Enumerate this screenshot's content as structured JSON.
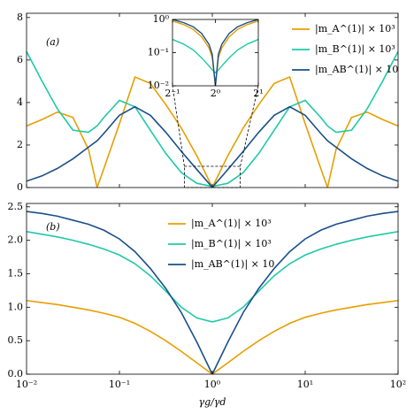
{
  "chart_data": [
    {
      "type": "line",
      "annotation": "(a)",
      "x": [
        0.01,
        0.0147,
        0.0215,
        0.0316,
        0.0464,
        0.0575,
        0.0681,
        0.1,
        0.147,
        0.215,
        0.316,
        0.464,
        0.681,
        1,
        1.47,
        2.15,
        3.16,
        4.64,
        6.81,
        10,
        14.7,
        17.4,
        21.5,
        31.6,
        46.4,
        68.1,
        100
      ],
      "series": [
        {
          "name": "|m_A^(1)| × 10³",
          "color": "#e69f00",
          "values": [
            2.9,
            3.2,
            3.55,
            3.3,
            1.8,
            0,
            0.9,
            3.0,
            5.2,
            4.9,
            3.9,
            2.8,
            1.5,
            0.01,
            1.5,
            2.8,
            3.9,
            4.9,
            5.2,
            3.0,
            0.9,
            0,
            1.8,
            3.3,
            3.55,
            3.2,
            2.9
          ]
        },
        {
          "name": "|m_B^(1)| × 10³",
          "color": "#1fc9a6",
          "values": [
            6.4,
            5.0,
            3.7,
            2.7,
            2.6,
            2.9,
            3.3,
            4.1,
            3.8,
            2.7,
            1.6,
            0.7,
            0.2,
            0.05,
            0.2,
            0.7,
            1.6,
            2.7,
            3.8,
            4.1,
            3.3,
            2.9,
            2.6,
            2.7,
            3.7,
            5.0,
            6.4
          ]
        },
        {
          "name": "|m_AB^(1)| × 10",
          "color": "#1a4f8a",
          "values": [
            0.3,
            0.55,
            0.9,
            1.35,
            1.9,
            2.2,
            2.55,
            3.4,
            3.8,
            3.4,
            2.6,
            1.7,
            0.85,
            0.01,
            0.85,
            1.7,
            2.6,
            3.4,
            3.8,
            3.4,
            2.55,
            2.2,
            1.9,
            1.35,
            0.9,
            0.55,
            0.3
          ]
        }
      ],
      "xscale": "log",
      "xlim": [
        0.01,
        100
      ],
      "xticks": [
        0.01,
        0.1,
        1,
        10,
        100
      ],
      "ylim": [
        0,
        8.2
      ],
      "yticks": [
        0,
        2,
        4,
        6,
        8
      ],
      "legend": "upper right",
      "inset_region": {
        "xlim": [
          0.5,
          2
        ],
        "ylim": [
          0,
          1
        ]
      }
    },
    {
      "type": "line",
      "annotation": "(b)",
      "xlabel": "γg/γd",
      "x": [
        0.01,
        0.0147,
        0.0215,
        0.0316,
        0.0464,
        0.0681,
        0.1,
        0.147,
        0.215,
        0.316,
        0.464,
        0.681,
        1,
        1.47,
        2.15,
        3.16,
        4.64,
        6.81,
        10,
        14.7,
        21.5,
        31.6,
        46.4,
        68.1,
        100
      ],
      "series": [
        {
          "name": "|m_A^(1)| × 10³",
          "color": "#e69f00",
          "values": [
            1.1,
            1.07,
            1.04,
            1.0,
            0.96,
            0.91,
            0.85,
            0.76,
            0.64,
            0.5,
            0.34,
            0.17,
            0,
            0.17,
            0.34,
            0.5,
            0.64,
            0.76,
            0.85,
            0.91,
            0.96,
            1.0,
            1.04,
            1.07,
            1.1
          ]
        },
        {
          "name": "|m_B^(1)| × 10³",
          "color": "#1fc9a6",
          "values": [
            2.13,
            2.09,
            2.05,
            2.0,
            1.94,
            1.87,
            1.78,
            1.65,
            1.47,
            1.24,
            1.0,
            0.84,
            0.78,
            0.84,
            1.0,
            1.24,
            1.47,
            1.65,
            1.78,
            1.87,
            1.94,
            2.0,
            2.05,
            2.09,
            2.13
          ]
        },
        {
          "name": "|m_AB^(1)| × 10",
          "color": "#1a4f8a",
          "values": [
            2.43,
            2.4,
            2.36,
            2.3,
            2.24,
            2.15,
            2.02,
            1.83,
            1.58,
            1.28,
            0.92,
            0.48,
            0,
            0.48,
            0.92,
            1.28,
            1.58,
            1.83,
            2.02,
            2.15,
            2.24,
            2.3,
            2.36,
            2.4,
            2.43
          ]
        }
      ],
      "xscale": "log",
      "xlim": [
        0.01,
        100
      ],
      "xticks": [
        {
          "value": 0.01,
          "label": "10⁻²"
        },
        {
          "value": 0.1,
          "label": "10⁻¹"
        },
        {
          "value": 1,
          "label": "10⁰"
        },
        {
          "value": 10,
          "label": "10¹"
        },
        {
          "value": 100,
          "label": "10²"
        }
      ],
      "ylim": [
        0,
        2.55
      ],
      "yticks": [
        {
          "value": 0,
          "label": "0.0"
        },
        {
          "value": 0.5,
          "label": "0.5"
        },
        {
          "value": 1,
          "label": "1.0"
        },
        {
          "value": 1.5,
          "label": "1.5"
        },
        {
          "value": 2,
          "label": "2.0"
        },
        2.5
      ],
      "legend": "upper center"
    },
    {
      "type": "line",
      "x": [
        0.5,
        0.6,
        0.7,
        0.8,
        0.9,
        0.95,
        1,
        1.05,
        1.11,
        1.25,
        1.43,
        1.67,
        2
      ],
      "series": [
        {
          "color": "#e69f00",
          "values": [
            0.9,
            0.7,
            0.5,
            0.3,
            0.14,
            0.07,
            0.01,
            0.07,
            0.14,
            0.3,
            0.5,
            0.7,
            0.9
          ]
        },
        {
          "color": "#1fc9a6",
          "values": [
            0.25,
            0.18,
            0.12,
            0.07,
            0.04,
            0.03,
            0.025,
            0.03,
            0.04,
            0.07,
            0.12,
            0.18,
            0.25
          ]
        },
        {
          "color": "#1a4f8a",
          "values": [
            1.0,
            0.8,
            0.6,
            0.38,
            0.18,
            0.09,
            0.01,
            0.09,
            0.18,
            0.38,
            0.6,
            0.8,
            1.0
          ]
        }
      ],
      "xscale": "log",
      "xlim": [
        0.5,
        2
      ],
      "xticks": [
        {
          "value": 0.5,
          "label": "2⁻¹"
        },
        {
          "value": 1,
          "label": "2⁰"
        },
        {
          "value": 2,
          "label": "2¹"
        }
      ],
      "yscale": "log",
      "ylim": [
        0.01,
        1
      ],
      "yticks": [
        {
          "value": 1,
          "label": "10⁰"
        },
        {
          "value": 0.1,
          "label": "10⁻¹"
        },
        {
          "value": 0.01,
          "label": "10⁻²"
        }
      ]
    }
  ]
}
